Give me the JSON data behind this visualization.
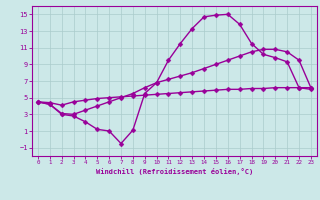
{
  "xlabel": "Windchill (Refroidissement éolien,°C)",
  "bg_color": "#cce8e8",
  "grid_color": "#aacccc",
  "line_color": "#990099",
  "curve1_x": [
    0,
    1,
    2,
    3,
    4,
    5,
    6,
    7,
    8,
    9,
    10,
    11,
    12,
    13,
    14,
    15,
    16,
    17,
    18,
    19,
    20,
    21,
    22,
    23
  ],
  "curve1_y": [
    4.5,
    4.2,
    3.0,
    2.8,
    2.1,
    1.2,
    1.0,
    -0.5,
    1.1,
    5.5,
    6.8,
    9.5,
    11.5,
    13.3,
    14.7,
    14.9,
    15.0,
    13.8,
    11.5,
    10.2,
    9.8,
    9.3,
    6.2,
    6.0
  ],
  "curve2_x": [
    0,
    1,
    2,
    3,
    4,
    5,
    6,
    7,
    8,
    9,
    10,
    11,
    12,
    13,
    14,
    15,
    16,
    17,
    18,
    19,
    20,
    21,
    22,
    23
  ],
  "curve2_y": [
    4.5,
    4.2,
    3.1,
    3.0,
    3.5,
    4.0,
    4.5,
    5.0,
    5.5,
    6.2,
    6.8,
    7.2,
    7.6,
    8.0,
    8.5,
    9.0,
    9.5,
    10.0,
    10.5,
    10.8,
    10.8,
    10.5,
    9.5,
    6.2
  ],
  "curve3_x": [
    0,
    1,
    2,
    3,
    4,
    5,
    6,
    7,
    8,
    9,
    10,
    11,
    12,
    13,
    14,
    15,
    16,
    17,
    18,
    19,
    20,
    21,
    22,
    23
  ],
  "curve3_y": [
    4.5,
    4.4,
    4.1,
    4.5,
    4.7,
    4.9,
    5.0,
    5.1,
    5.2,
    5.3,
    5.4,
    5.5,
    5.6,
    5.7,
    5.8,
    5.9,
    6.0,
    6.0,
    6.1,
    6.1,
    6.2,
    6.2,
    6.2,
    6.2
  ],
  "xlim": [
    -0.5,
    23.5
  ],
  "ylim": [
    -2,
    16
  ],
  "yticks": [
    -1,
    1,
    3,
    5,
    7,
    9,
    11,
    13,
    15
  ],
  "xticks": [
    0,
    1,
    2,
    3,
    4,
    5,
    6,
    7,
    8,
    9,
    10,
    11,
    12,
    13,
    14,
    15,
    16,
    17,
    18,
    19,
    20,
    21,
    22,
    23
  ],
  "markersize": 2.5,
  "linewidth": 1.0
}
